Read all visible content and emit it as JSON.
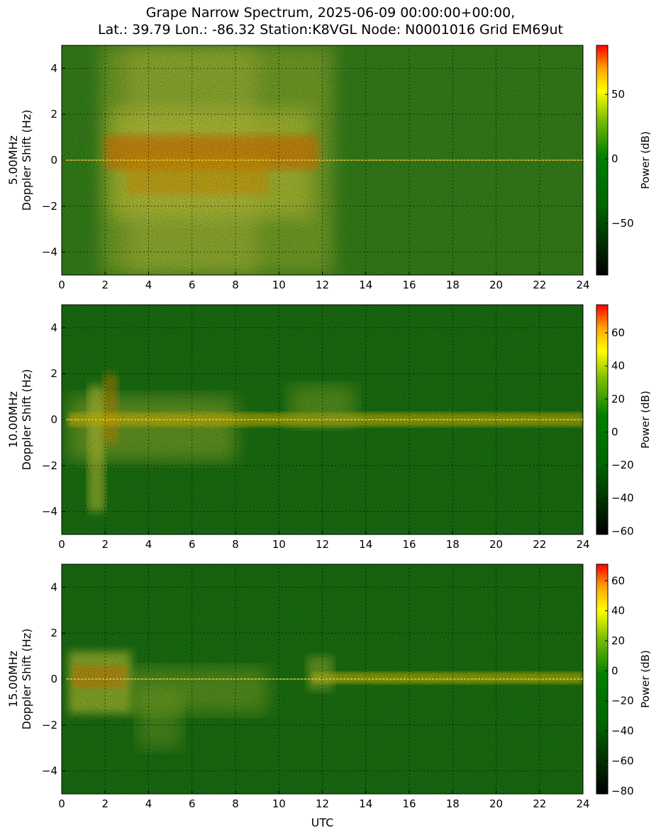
{
  "title_line1": "Grape Narrow Spectrum, 2025-06-09 00:00:00+00:00,",
  "title_line2": "Lat.: 39.79 Lon.: -86.32 Station:K8VGL Node: N0001016 Grid EM69ut",
  "colors": {
    "colormap": [
      "#000000",
      "#006400",
      "#008000",
      "#4caf00",
      "#ffff00",
      "#ffa500",
      "#ff0000"
    ],
    "background_green": "#2c8a1c",
    "grid": "#000000"
  },
  "chart_data": [
    {
      "type": "heatmap",
      "ylabel_line1": "5.00MHz",
      "ylabel_line2": "Doppler Shift (Hz)",
      "xlabel": "",
      "xlim": [
        0,
        24
      ],
      "ylim": [
        -5,
        5
      ],
      "x_ticks": [
        "0",
        "2",
        "4",
        "6",
        "8",
        "10",
        "12",
        "14",
        "16",
        "18",
        "20",
        "22",
        "24"
      ],
      "y_ticks": [
        "4",
        "2",
        "0",
        "−2",
        "−4"
      ],
      "y_tick_values": [
        4,
        2,
        0,
        -2,
        -4
      ],
      "colorbar": {
        "label": "Power (dB)",
        "range": [
          -90,
          88
        ],
        "ticks": [
          "50",
          "0",
          "−50"
        ],
        "tick_values": [
          50,
          0,
          -50
        ]
      },
      "grid": true
    },
    {
      "type": "heatmap",
      "ylabel_line1": "10.00MHz",
      "ylabel_line2": "Doppler Shift (Hz)",
      "xlabel": "",
      "xlim": [
        0,
        24
      ],
      "ylim": [
        -5,
        5
      ],
      "x_ticks": [
        "0",
        "2",
        "4",
        "6",
        "8",
        "10",
        "12",
        "14",
        "16",
        "18",
        "20",
        "22",
        "24"
      ],
      "y_ticks": [
        "4",
        "2",
        "0",
        "−2",
        "−4"
      ],
      "y_tick_values": [
        4,
        2,
        0,
        -2,
        -4
      ],
      "colorbar": {
        "label": "Power (dB)",
        "range": [
          -62,
          77
        ],
        "ticks": [
          "60",
          "40",
          "20",
          "0",
          "−20",
          "−40",
          "−60"
        ],
        "tick_values": [
          60,
          40,
          20,
          0,
          -20,
          -40,
          -60
        ]
      },
      "grid": true
    },
    {
      "type": "heatmap",
      "ylabel_line1": "15.00MHz",
      "ylabel_line2": "Doppler Shift (Hz)",
      "xlabel": "UTC",
      "xlim": [
        0,
        24
      ],
      "ylim": [
        -5,
        5
      ],
      "x_ticks": [
        "0",
        "2",
        "4",
        "6",
        "8",
        "10",
        "12",
        "14",
        "16",
        "18",
        "20",
        "22",
        "24"
      ],
      "y_ticks": [
        "4",
        "2",
        "0",
        "−2",
        "−4"
      ],
      "y_tick_values": [
        4,
        2,
        0,
        -2,
        -4
      ],
      "colorbar": {
        "label": "Power (dB)",
        "range": [
          -82,
          71
        ],
        "ticks": [
          "60",
          "40",
          "20",
          "0",
          "−20",
          "−40",
          "−60",
          "−80"
        ],
        "tick_values": [
          60,
          40,
          20,
          0,
          -20,
          -40,
          -60,
          -80
        ]
      },
      "grid": true
    }
  ]
}
